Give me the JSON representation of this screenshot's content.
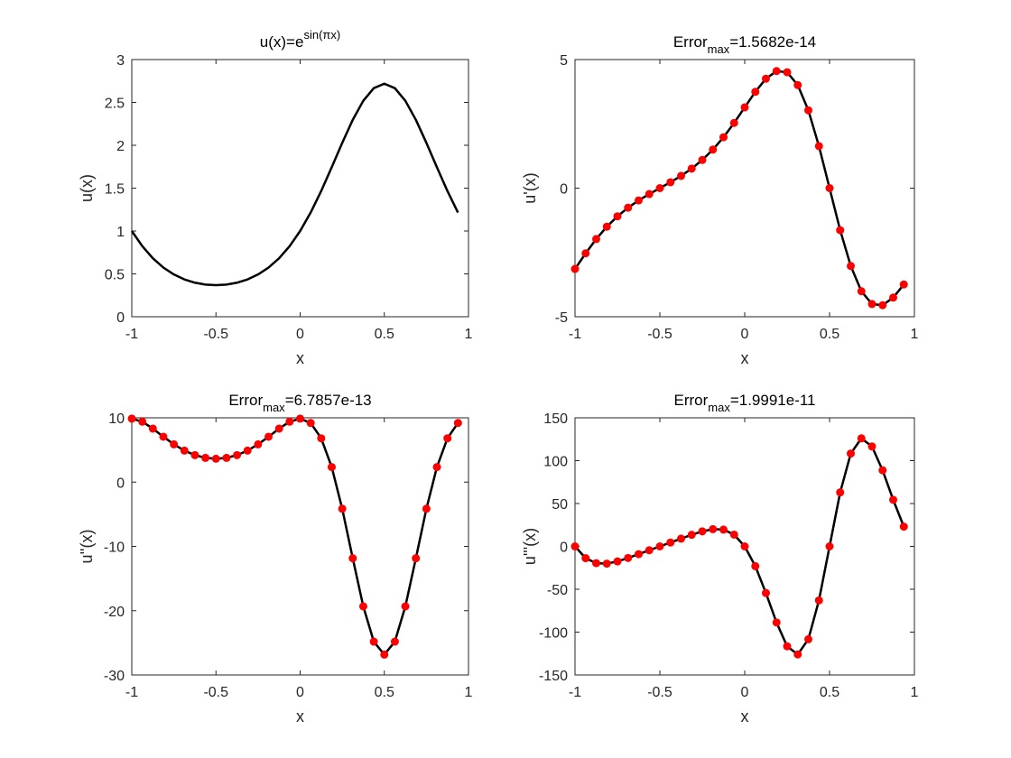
{
  "chart_data": [
    {
      "type": "line",
      "title": {
        "text": "u(x)=e",
        "sup": "sin(πx)"
      },
      "xlabel": "x",
      "ylabel": "u(x)",
      "x": [
        -1,
        -0.9375,
        -0.875,
        -0.8125,
        -0.75,
        -0.6875,
        -0.625,
        -0.5625,
        -0.5,
        -0.4375,
        -0.375,
        -0.3125,
        -0.25,
        -0.1875,
        -0.125,
        -0.0625,
        0,
        0.0625,
        0.125,
        0.1875,
        0.25,
        0.3125,
        0.375,
        0.4375,
        0.5,
        0.5625,
        0.625,
        0.6875,
        0.75,
        0.8125,
        0.875,
        0.9375
      ],
      "series": [
        {
          "color": "#000000",
          "values": [
            1,
            0.8228,
            0.682,
            0.5737,
            0.4931,
            0.4354,
            0.397,
            0.375,
            0.3679,
            0.375,
            0.397,
            0.4354,
            0.4931,
            0.5737,
            0.682,
            0.8228,
            1,
            1.2154,
            1.4662,
            1.7429,
            2.0281,
            2.2967,
            2.519,
            2.6666,
            2.7183,
            2.6666,
            2.519,
            2.2967,
            2.0281,
            1.7429,
            1.4662,
            1.2154
          ]
        }
      ],
      "xlim": [
        -1,
        1
      ],
      "ylim": [
        0,
        3
      ],
      "xticks": [
        -1,
        -0.5,
        0,
        0.5,
        1
      ],
      "yticks": [
        0,
        0.5,
        1,
        1.5,
        2,
        2.5,
        3
      ]
    },
    {
      "type": "line",
      "title": {
        "text": "Error",
        "sub": "max",
        "after": "=1.5682e-14"
      },
      "xlabel": "x",
      "ylabel": "u'(x)",
      "x": [
        -1,
        -0.9375,
        -0.875,
        -0.8125,
        -0.75,
        -0.6875,
        -0.625,
        -0.5625,
        -0.5,
        -0.4375,
        -0.375,
        -0.3125,
        -0.25,
        -0.1875,
        -0.125,
        -0.0625,
        0,
        0.0625,
        0.125,
        0.1875,
        0.25,
        0.3125,
        0.375,
        0.4375,
        0.5,
        0.5625,
        0.625,
        0.6875,
        0.75,
        0.8125,
        0.875,
        0.9375
      ],
      "series": [
        {
          "color": "#000000",
          "marker_color": "#ff0000",
          "values": [
            -3.1416,
            -2.5352,
            -1.9795,
            -1.4986,
            -1.0954,
            -0.76,
            -0.4773,
            -0.2298,
            0,
            0.2298,
            0.4773,
            0.76,
            1.0954,
            1.4986,
            1.9795,
            2.5352,
            3.1416,
            3.7449,
            4.2556,
            4.5527,
            4.5053,
            4.0086,
            3.0284,
            1.6344,
            0,
            -1.6344,
            -3.0284,
            -4.0086,
            -4.5053,
            -4.5527,
            -4.2556,
            -3.7449
          ]
        }
      ],
      "xlim": [
        -1,
        1
      ],
      "ylim": [
        -5,
        5
      ],
      "xticks": [
        -1,
        -0.5,
        0,
        0.5,
        1
      ],
      "yticks": [
        -5,
        0,
        5
      ]
    },
    {
      "type": "line",
      "title": {
        "text": "Error",
        "sub": "max",
        "after": "=6.7857e-13"
      },
      "xlabel": "x",
      "ylabel": "u''(x)",
      "x": [
        -1,
        -0.9375,
        -0.875,
        -0.8125,
        -0.75,
        -0.6875,
        -0.625,
        -0.5625,
        -0.5,
        -0.4375,
        -0.375,
        -0.3125,
        -0.25,
        -0.1875,
        -0.125,
        -0.0625,
        0,
        0.0625,
        0.125,
        0.1875,
        0.25,
        0.3125,
        0.375,
        0.4375,
        0.5,
        0.5625,
        0.625,
        0.6875,
        0.75,
        0.8125,
        0.875,
        0.9375
      ],
      "series": [
        {
          "color": "#000000",
          "marker_color": "#ff0000",
          "values": [
            9.8696,
            9.3958,
            8.3212,
            7.0602,
            5.8747,
            4.8994,
            4.1938,
            3.7709,
            3.631,
            3.7709,
            4.1938,
            4.8994,
            5.8747,
            7.0602,
            8.3212,
            9.3958,
            9.8696,
            9.1987,
            6.8139,
            2.3355,
            -4.1456,
            -11.8508,
            -19.3281,
            -24.8111,
            -26.8285,
            -24.8111,
            -19.3281,
            -11.8508,
            -4.1456,
            2.3355,
            6.8139,
            9.1987
          ]
        }
      ],
      "xlim": [
        -1,
        1
      ],
      "ylim": [
        -30,
        10
      ],
      "xticks": [
        -1,
        -0.5,
        0,
        0.5,
        1
      ],
      "yticks": [
        -30,
        -20,
        -10,
        0,
        10
      ]
    },
    {
      "type": "line",
      "title": {
        "text": "Error",
        "sub": "max",
        "after": "=1.9991e-11"
      },
      "xlabel": "x",
      "ylabel": "u'''(x)",
      "x": [
        -1,
        -0.9375,
        -0.875,
        -0.8125,
        -0.75,
        -0.6875,
        -0.625,
        -0.5625,
        -0.5,
        -0.4375,
        -0.375,
        -0.3125,
        -0.25,
        -0.1875,
        -0.125,
        -0.0625,
        0,
        0.0625,
        0.125,
        0.1875,
        0.25,
        0.3125,
        0.375,
        0.4375,
        0.5,
        0.5625,
        0.625,
        0.6875,
        0.75,
        0.8125,
        0.875,
        0.9375
      ],
      "series": [
        {
          "color": "#000000",
          "marker_color": "#ff0000",
          "values": [
            0,
            -13.692,
            -19.567,
            -20.086,
            -17.528,
            -13.523,
            -9.035,
            -4.492,
            0,
            4.492,
            9.035,
            13.523,
            17.528,
            20.086,
            19.567,
            13.692,
            0,
            -23.039,
            -54.369,
            -88.759,
            -116.558,
            -126.038,
            -108.353,
            -62.977,
            0,
            62.977,
            108.353,
            126.038,
            116.558,
            88.759,
            54.369,
            23.039
          ]
        }
      ],
      "xlim": [
        -1,
        1
      ],
      "ylim": [
        -150,
        150
      ],
      "xticks": [
        -1,
        -0.5,
        0,
        0.5,
        1
      ],
      "yticks": [
        -150,
        -100,
        -50,
        0,
        50,
        100,
        150
      ]
    }
  ]
}
